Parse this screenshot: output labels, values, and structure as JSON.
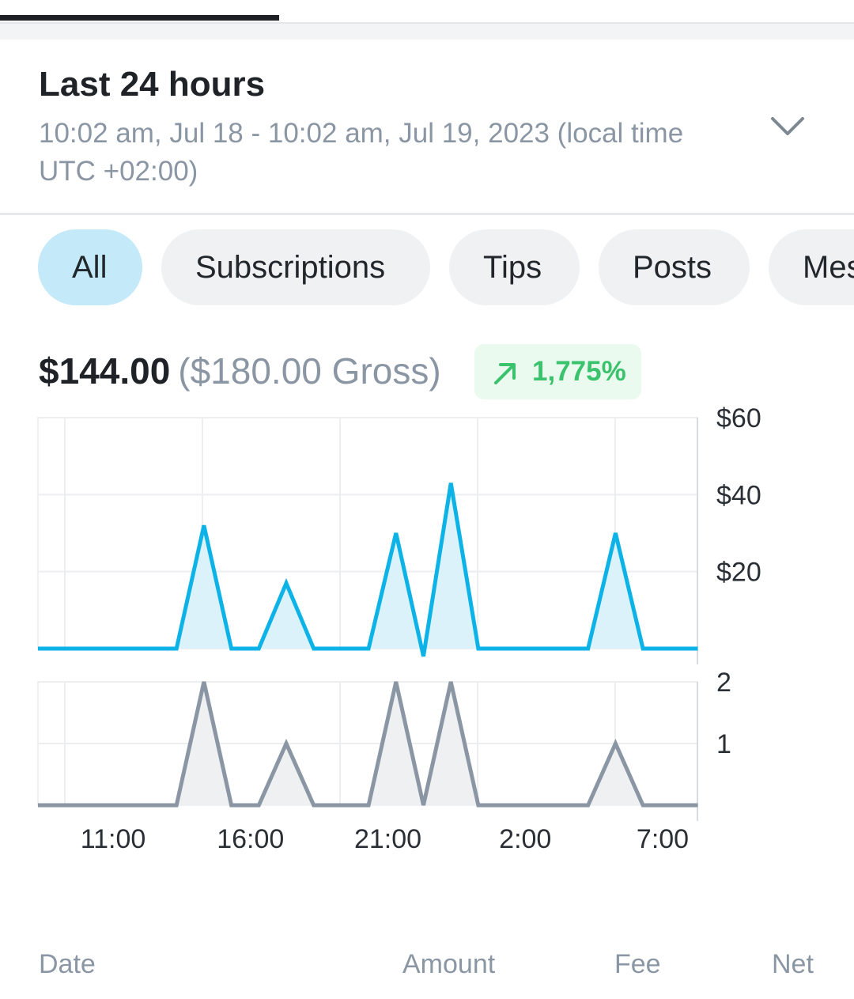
{
  "period": {
    "title": "Last 24 hours",
    "range": "10:02 am, Jul 18 - 10:02 am, Jul 19, 2023 (local time UTC +02:00)",
    "expand_icon": "chevron-down-icon"
  },
  "filters": [
    {
      "label": "All",
      "active": true
    },
    {
      "label": "Subscriptions",
      "active": false
    },
    {
      "label": "Tips",
      "active": false
    },
    {
      "label": "Posts",
      "active": false
    },
    {
      "label": "Messages",
      "active": false
    }
  ],
  "summary": {
    "net": "$144.00",
    "gross": "($180.00 Gross)",
    "change": "1,775%",
    "change_icon": "arrow-up-right-icon",
    "change_color": "#3bc26c"
  },
  "table_header": {
    "date": "Date",
    "amount": "Amount",
    "fee": "Fee",
    "net": "Net"
  },
  "colors": {
    "amount_line": "#0db3e7",
    "amount_fill": "#dcf2fb",
    "count_line": "#8a96a3",
    "count_fill": "#eff0f2",
    "active_chip": "#c4e9f9"
  },
  "chart_data": [
    {
      "type": "area",
      "x": [
        "10:00",
        "11:00",
        "12:00",
        "13:00",
        "14:00",
        "15:00",
        "16:00",
        "17:00",
        "18:00",
        "19:00",
        "20:00",
        "21:00",
        "22:00",
        "23:00",
        "0:00",
        "1:00",
        "2:00",
        "3:00",
        "4:00",
        "5:00",
        "6:00",
        "7:00",
        "8:00",
        "9:00",
        "10:00"
      ],
      "series": [
        {
          "values": [
            0,
            0,
            0,
            0,
            0,
            32,
            0,
            0,
            17,
            0,
            0,
            0,
            30,
            -2,
            43,
            0,
            0,
            0,
            0,
            0,
            30,
            0,
            0,
            0,
            0
          ]
        }
      ],
      "x_tick_labels": [
        "11:00",
        "16:00",
        "21:00",
        "2:00",
        "7:00"
      ],
      "y_tick_labels": [
        "$60",
        "$40",
        "$20"
      ],
      "ylim": [
        0,
        60
      ],
      "grid": true,
      "y_axis_position": "right"
    },
    {
      "type": "area",
      "x": [
        "10:00",
        "11:00",
        "12:00",
        "13:00",
        "14:00",
        "15:00",
        "16:00",
        "17:00",
        "18:00",
        "19:00",
        "20:00",
        "21:00",
        "22:00",
        "23:00",
        "0:00",
        "1:00",
        "2:00",
        "3:00",
        "4:00",
        "5:00",
        "6:00",
        "7:00",
        "8:00",
        "9:00",
        "10:00"
      ],
      "series": [
        {
          "values": [
            0,
            0,
            0,
            0,
            0,
            2,
            0,
            0,
            1,
            0,
            0,
            0,
            2,
            0,
            2,
            0,
            0,
            0,
            0,
            0,
            1,
            0,
            0,
            0,
            0
          ]
        }
      ],
      "x_tick_labels": [
        "11:00",
        "16:00",
        "21:00",
        "2:00",
        "7:00"
      ],
      "y_tick_labels": [
        "2",
        "1"
      ],
      "ylim": [
        0,
        2
      ],
      "grid": true,
      "y_axis_position": "right"
    }
  ]
}
